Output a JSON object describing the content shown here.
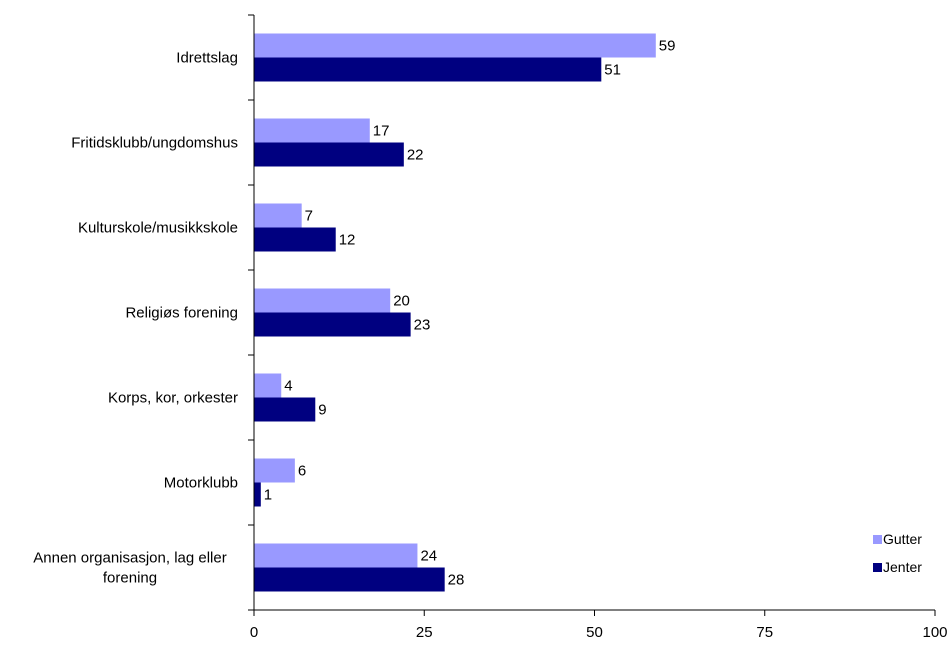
{
  "chart_data": {
    "type": "bar",
    "orientation": "horizontal",
    "categories": [
      [
        "Idrettslag"
      ],
      [
        "Fritidsklubb/ungdomshus"
      ],
      [
        "Kulturskole/musikkskole"
      ],
      [
        "Religiøs forening"
      ],
      [
        "Korps, kor, orkester"
      ],
      [
        "Motorklubb"
      ],
      [
        "Annen organisasjon, lag eller",
        "forening"
      ]
    ],
    "series": [
      {
        "name": "Gutter",
        "color": "#9999ff",
        "values": [
          59,
          17,
          7,
          20,
          4,
          6,
          24
        ]
      },
      {
        "name": "Jenter",
        "color": "#000080",
        "values": [
          51,
          22,
          12,
          23,
          9,
          1,
          28
        ]
      }
    ],
    "xlim": [
      0,
      100
    ],
    "xticks": [
      0,
      25,
      50,
      75,
      100
    ],
    "grid": false,
    "legend_position": "right",
    "data_labels": true
  }
}
